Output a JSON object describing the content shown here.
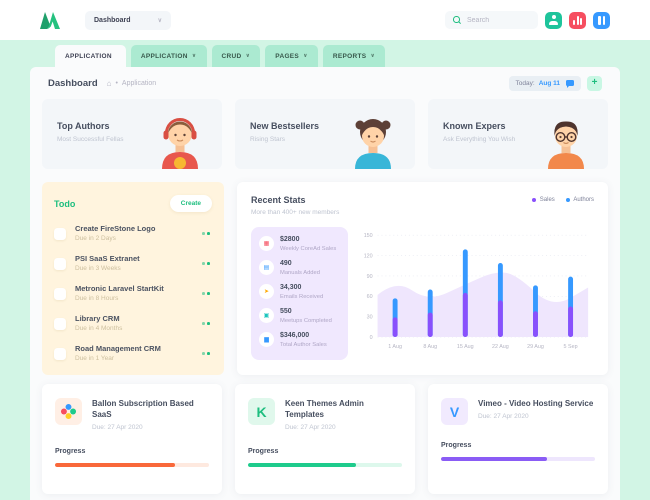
{
  "header": {
    "workspace": {
      "label": "Dashboard",
      "caret": "∨"
    },
    "search": {
      "placeholder": "Search"
    },
    "action_colors": {
      "user": "#1EC49B",
      "stats": "#F64E60",
      "layout": "#3699FF"
    }
  },
  "tabs": [
    {
      "label": "APPLICATION",
      "caret": "",
      "active": true
    },
    {
      "label": "APPLICATION",
      "caret": "∨",
      "active": false
    },
    {
      "label": "CRUD",
      "caret": "∨",
      "active": false
    },
    {
      "label": "PAGES",
      "caret": "∨",
      "active": false
    },
    {
      "label": "REPORTS",
      "caret": "∨",
      "active": false
    }
  ],
  "breadcrumb": {
    "title": "Dashboard",
    "home_glyph": "⌂",
    "sep": "•",
    "path": "Application",
    "today_label": "Today:",
    "today_value": "Aug 11",
    "add_label": "+"
  },
  "info_cards": [
    {
      "title": "Top Authors",
      "subtitle": "Most Successful Fellas",
      "avatar": "boy-headphones"
    },
    {
      "title": "New Bestsellers",
      "subtitle": "Rising Stars",
      "avatar": "girl"
    },
    {
      "title": "Known Expers",
      "subtitle": "Ask Everything You Wish",
      "avatar": "boy-glasses"
    }
  ],
  "todo": {
    "title": "Todo",
    "create_label": "Create",
    "items": [
      {
        "title": "Create FireStone Logo",
        "due": "Due in 2 Days"
      },
      {
        "title": "PSI SaaS Extranet",
        "due": "Due in 3 Weeks"
      },
      {
        "title": "Metronic Laravel StartKit",
        "due": "Due in 8 Hours"
      },
      {
        "title": "Library CRM",
        "due": "Due in 4 Months"
      },
      {
        "title": "Road Management CRM",
        "due": "Due in 1 Year"
      }
    ]
  },
  "recent_stats": {
    "title": "Recent Stats",
    "subtitle": "More than 400+ new members",
    "stats": [
      {
        "value": "$2800",
        "label": "Weekly CoreAd Sales",
        "glyph": "▦",
        "color": "#F64E60"
      },
      {
        "value": "490",
        "label": "Manuals Added",
        "glyph": "▤",
        "color": "#3699FF"
      },
      {
        "value": "34,300",
        "label": "Emails Received",
        "glyph": "➤",
        "color": "#FFA800"
      },
      {
        "value": "550",
        "label": "Meetups Completed",
        "glyph": "▣",
        "color": "#1BC5BD"
      },
      {
        "value": "$346,000",
        "label": "Total Author Sales",
        "glyph": "▆",
        "color": "#3699FF"
      }
    ]
  },
  "chart_data": {
    "type": "bar",
    "title": "Recent Stats",
    "categories": [
      "1 Aug",
      "8 Aug",
      "15 Aug",
      "22 Aug",
      "29 Aug",
      "5 Sep"
    ],
    "series": [
      {
        "name": "Sales",
        "color": "#8950FC",
        "values": [
          29,
          36,
          65,
          54,
          38,
          45
        ]
      },
      {
        "name": "Authors",
        "color": "#3699FF",
        "values": [
          28,
          34,
          64,
          55,
          38,
          44
        ]
      }
    ],
    "stacked": true,
    "ylim": [
      0,
      150
    ],
    "yticks": [
      0,
      30,
      60,
      90,
      120,
      150
    ],
    "grid": "dotted horizontal",
    "legend_position": "top-right",
    "area_background": {
      "color": "#EFE6FD",
      "points_pct_value": [
        [
          0,
          62
        ],
        [
          9,
          85
        ],
        [
          24,
          52
        ],
        [
          42,
          78
        ],
        [
          56,
          97
        ],
        [
          66,
          92
        ],
        [
          83,
          42
        ],
        [
          100,
          73
        ]
      ]
    }
  },
  "projects": [
    {
      "title": "Ballon Subscription Based SaaS",
      "due": "Due: 27 Apr 2020",
      "progress_label": "Progress",
      "progress_pct": 78,
      "bar_color": "#F9683A",
      "track_color": "#FEE9DF",
      "icon": {
        "name": "clover-icon",
        "tile_bg": "#FFEFE5"
      }
    },
    {
      "title": "Keen Themes Admin Templates",
      "due": "Due: 27 Apr 2020",
      "progress_label": "Progress",
      "progress_pct": 70,
      "bar_color": "#1ECB8C",
      "track_color": "#DDF8EC",
      "icon": {
        "name": "keenthemes-k-icon",
        "letter": "K",
        "color": "#1EBE7F",
        "tile_bg": "#E0F8EC"
      }
    },
    {
      "title": "Vimeo - Video Hosting Service",
      "due": "Due: 27 Apr 2020",
      "progress_label": "Progress",
      "progress_pct": 69,
      "bar_color": "#8A5CF5",
      "track_color": "#EEE6FD",
      "icon": {
        "name": "vimeo-v-icon",
        "letter": "V",
        "color": "#3699FF",
        "tile_bg": "#F1EAFE"
      }
    }
  ]
}
